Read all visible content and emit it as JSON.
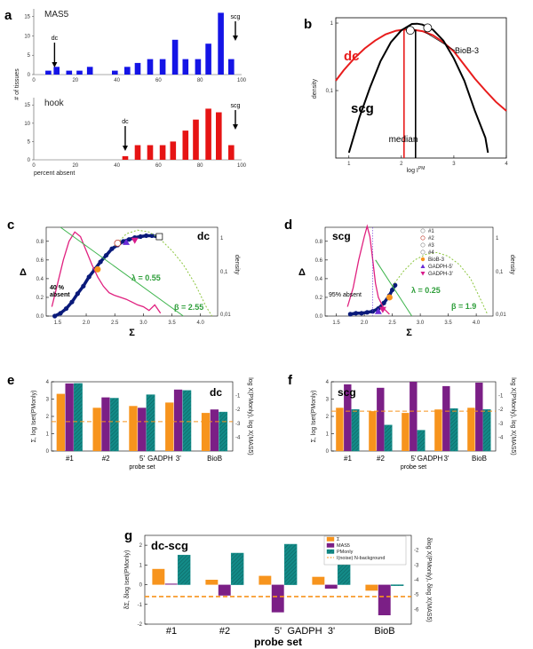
{
  "chart_data": [
    {
      "panel": "a",
      "type": "bar",
      "subplots": [
        {
          "title": "MAS5",
          "color": "#1414e6",
          "categories": [
            7,
            11,
            17,
            22,
            27,
            33,
            39,
            45,
            50,
            56,
            62,
            68,
            73,
            79,
            84,
            90,
            95
          ],
          "values": [
            1,
            2,
            1,
            1,
            2,
            0,
            1,
            2,
            3,
            4,
            4,
            9,
            4,
            4,
            8,
            16,
            4
          ],
          "annotations": [
            {
              "label": "dc",
              "x": 10
            },
            {
              "label": "scg",
              "x": 97
            }
          ],
          "ylim": [
            0,
            17
          ],
          "yticks": [
            "0",
            "5",
            "10",
            "15"
          ],
          "xticks": [
            "0",
            "20",
            "40",
            "60",
            "80",
            "100"
          ]
        },
        {
          "title": "hook",
          "color": "#e61414",
          "categories": [
            44,
            50,
            56,
            62,
            67,
            73,
            78,
            84,
            89,
            95
          ],
          "values": [
            1,
            4,
            4,
            4,
            5,
            8,
            11,
            14,
            13,
            4
          ],
          "annotations": [
            {
              "label": "dc",
              "x": 44
            },
            {
              "label": "scg",
              "x": 97
            }
          ],
          "ylim": [
            0,
            17
          ],
          "yticks": [
            "0",
            "5",
            "10",
            "15"
          ],
          "xticks": [
            "0",
            "20",
            "40",
            "60",
            "80",
            "100"
          ]
        }
      ],
      "ylabel": "# of tissues",
      "xlabel": "percent absent",
      "xlim": [
        0,
        100
      ]
    },
    {
      "panel": "b",
      "type": "line",
      "xlabel": "log I",
      "xlabel_sup": "PM",
      "ylabel": "density",
      "xlim": [
        0.75,
        4.0
      ],
      "xticks": [
        "1",
        "2",
        "3",
        "4"
      ],
      "yticks": [
        "1",
        "0,1"
      ],
      "series": [
        {
          "name": "dc",
          "color": "#e81c1c",
          "x": [
            0.75,
            0.9,
            1.1,
            1.3,
            1.5,
            1.7,
            1.9,
            2.05,
            2.2,
            2.4,
            2.6,
            2.8,
            3.0,
            3.2,
            3.4,
            3.6,
            3.8,
            4.0
          ],
          "y": [
            0.14,
            0.2,
            0.3,
            0.42,
            0.55,
            0.68,
            0.77,
            0.8,
            0.8,
            0.76,
            0.66,
            0.52,
            0.38,
            0.24,
            0.15,
            0.1,
            0.068,
            0.05
          ]
        },
        {
          "name": "scg",
          "color": "#000000",
          "x": [
            1.0,
            1.2,
            1.4,
            1.6,
            1.8,
            2.0,
            2.2,
            2.3,
            2.4,
            2.6,
            2.8,
            3.0,
            3.2,
            3.4,
            3.6,
            3.65
          ],
          "y": [
            0.012,
            0.04,
            0.11,
            0.27,
            0.52,
            0.78,
            0.97,
            0.98,
            0.95,
            0.8,
            0.55,
            0.3,
            0.14,
            0.05,
            0.02,
            0.012
          ]
        }
      ],
      "annotations": [
        "dc",
        "scg",
        "BioB-3",
        "median"
      ],
      "medians": [
        {
          "series": "dc",
          "x": 2.05
        },
        {
          "series": "scg",
          "x": 2.27
        }
      ],
      "markers": [
        {
          "series": "dc",
          "x": 2.17,
          "y": 0.78
        },
        {
          "series": "scg",
          "x": 2.5,
          "y": 0.85
        }
      ]
    },
    {
      "panel": "c",
      "type": "scatter",
      "title": "dc",
      "xlabel": "Σ",
      "ylabel": "Δ",
      "y2label": "density",
      "xlim": [
        1.3,
        4.3
      ],
      "ylim": [
        0,
        0.95
      ],
      "xticks": [
        "1.5",
        "2.0",
        "2.5",
        "3.0",
        "3.5",
        "4.0"
      ],
      "yticks": [
        "0.0",
        "0.2",
        "0.4",
        "0.6",
        "0.8"
      ],
      "y2ticks": [
        "1",
        "0,1",
        "0,01"
      ],
      "series": [
        {
          "name": "data",
          "color": "#0a1a7a",
          "x": [
            1.45,
            1.55,
            1.65,
            1.75,
            1.85,
            1.95,
            2.05,
            2.15,
            2.25,
            2.35,
            2.45,
            2.55,
            2.65,
            2.75,
            2.85,
            2.95,
            3.05,
            3.15,
            3.25
          ],
          "y": [
            0.0,
            0.03,
            0.08,
            0.15,
            0.24,
            0.32,
            0.42,
            0.5,
            0.58,
            0.65,
            0.72,
            0.76,
            0.8,
            0.82,
            0.84,
            0.85,
            0.86,
            0.86,
            0.85
          ]
        },
        {
          "name": "PM density",
          "color": "#e0207f",
          "x": [
            1.4,
            1.5,
            1.6,
            1.7,
            1.8,
            1.9,
            2.0,
            2.1,
            2.2,
            2.3,
            2.4,
            2.5,
            2.6,
            2.7,
            2.8,
            2.9,
            3.0,
            3.1,
            3.2,
            3.3
          ],
          "y": [
            0.1,
            0.35,
            0.6,
            0.8,
            0.9,
            0.85,
            0.7,
            0.55,
            0.42,
            0.32,
            0.25,
            0.22,
            0.2,
            0.18,
            0.15,
            0.12,
            0.1,
            0.06,
            0.12,
            0.03
          ]
        },
        {
          "name": "fit",
          "color": "#8cc63f",
          "dashed": true,
          "x": [
            2.5,
            2.7,
            2.9,
            3.1,
            3.3,
            3.5,
            3.7,
            3.9,
            4.1,
            4.2
          ],
          "y": [
            0.75,
            0.88,
            0.92,
            0.9,
            0.82,
            0.7,
            0.55,
            0.35,
            0.1,
            0.0
          ]
        },
        {
          "name": "lambda line",
          "color": "#3cb44b",
          "x": [
            1.55,
            3.7
          ],
          "y": [
            0.95,
            0.0
          ]
        }
      ],
      "probe_markers": [
        {
          "name": "#1",
          "x": 3.28,
          "y": 0.85,
          "shape": "square-open"
        },
        {
          "name": "#2",
          "x": 2.55,
          "y": 0.78,
          "shape": "circle-open"
        },
        {
          "name": "GADPH-5'",
          "x": 2.7,
          "y": 0.79,
          "shape": "triangle"
        },
        {
          "name": "GADPH-3'",
          "x": 2.85,
          "y": 0.81,
          "shape": "triangle-down"
        },
        {
          "name": "BioB-3",
          "x": 2.2,
          "y": 0.5,
          "shape": "circle"
        }
      ],
      "annotations": [
        "λ = 0.55",
        "β = 2.55",
        "40 % absent"
      ]
    },
    {
      "panel": "d",
      "type": "scatter",
      "title": "scg",
      "xlabel": "Σ",
      "ylabel": "Δ",
      "y2label": "density",
      "xlim": [
        1.3,
        4.3
      ],
      "ylim": [
        0,
        0.95
      ],
      "xticks": [
        "1.5",
        "2.0",
        "2.5",
        "3.0",
        "3.5",
        "4.0"
      ],
      "yticks": [
        "0.0",
        "0.2",
        "0.4",
        "0.6",
        "0.8"
      ],
      "y2ticks": [
        "1",
        "0,1",
        "0,01"
      ],
      "legend": [
        "#1",
        "#2",
        "#3",
        "#4",
        "BioB-3",
        "GADPH-5'",
        "GADPH-3'"
      ],
      "series": [
        {
          "name": "data",
          "color": "#0a1a7a",
          "x": [
            1.75,
            1.85,
            1.95,
            2.05,
            2.15,
            2.25,
            2.35,
            2.45,
            2.5,
            2.55
          ],
          "y": [
            0.02,
            0.03,
            0.03,
            0.04,
            0.05,
            0.08,
            0.14,
            0.22,
            0.28,
            0.33
          ]
        },
        {
          "name": "PM density",
          "color": "#e0207f",
          "x": [
            1.7,
            1.8,
            1.9,
            2.0,
            2.05,
            2.1,
            2.15,
            2.2,
            2.25,
            2.35,
            2.45
          ],
          "y": [
            0.1,
            0.3,
            0.6,
            0.85,
            0.96,
            0.85,
            0.6,
            0.35,
            0.2,
            0.08,
            0.02
          ]
        },
        {
          "name": "fit",
          "color": "#8cc63f",
          "dashed": true,
          "x": [
            2.5,
            2.7,
            2.9,
            3.1,
            3.3,
            3.5,
            3.7,
            3.9,
            4.1,
            4.2
          ],
          "y": [
            0.32,
            0.48,
            0.6,
            0.66,
            0.68,
            0.64,
            0.55,
            0.4,
            0.15,
            0.02
          ]
        },
        {
          "name": "lambda line",
          "color": "#3cb44b",
          "x": [
            2.2,
            2.85
          ],
          "y": [
            0.6,
            0.0
          ]
        }
      ],
      "probe_markers": [
        {
          "name": "GADPH-5'",
          "x": 2.25,
          "y": 0.05,
          "shape": "triangle"
        },
        {
          "name": "GADPH-3'",
          "x": 2.33,
          "y": 0.07,
          "shape": "triangle-down"
        },
        {
          "name": "BioB-3",
          "x": 2.45,
          "y": 0.2,
          "shape": "circle"
        }
      ],
      "annotations": [
        "λ = 0.25",
        "β = 1.9",
        "95% absent"
      ]
    },
    {
      "panel": "e",
      "type": "bar",
      "title": "dc",
      "xlabel": "probe set",
      "ylabel": "Σ, log Iset(PMonly)",
      "y2label": "log X(PMonly), log X(MAS5)",
      "categories": [
        "#1",
        "#2",
        "5'",
        "3'",
        "BioB"
      ],
      "category_caption": "GADPH",
      "series": [
        {
          "name": "Σ",
          "color": "#f7941d",
          "values": [
            3.3,
            2.5,
            2.6,
            2.8,
            2.2
          ]
        },
        {
          "name": "MAS5",
          "color": "#7b1f86",
          "values": [
            3.9,
            3.1,
            2.5,
            3.55,
            2.4
          ]
        },
        {
          "name": "PMonly",
          "color": "#138b88",
          "values": [
            3.9,
            3.05,
            3.25,
            3.5,
            2.25
          ]
        }
      ],
      "ylim": [
        0,
        4
      ],
      "yticks": [
        "0",
        "1",
        "2",
        "3",
        "4"
      ],
      "y2ticks": [
        "-1",
        "-2",
        "-3",
        "-4"
      ],
      "background_level": 1.7
    },
    {
      "panel": "f",
      "type": "bar",
      "title": "scg",
      "xlabel": "probe set",
      "ylabel": "Σ, log Iset(PMonly)",
      "y2label": "log X(PMonly), log X(MAS5)",
      "categories": [
        "#1",
        "#2",
        "5'",
        "3'",
        "BioB"
      ],
      "category_caption": "GADPH",
      "series": [
        {
          "name": "Σ",
          "color": "#f7941d",
          "values": [
            2.5,
            2.3,
            2.2,
            2.4,
            2.5
          ]
        },
        {
          "name": "MAS5",
          "color": "#7b1f86",
          "values": [
            3.85,
            3.65,
            4.0,
            3.75,
            3.95
          ]
        },
        {
          "name": "PMonly",
          "color": "#138b88",
          "values": [
            2.4,
            1.5,
            1.2,
            2.45,
            2.4
          ]
        }
      ],
      "ylim": [
        0,
        4
      ],
      "yticks": [
        "0",
        "1",
        "2",
        "3",
        "4"
      ],
      "y2ticks": [
        "-1",
        "-2",
        "-3",
        "-4"
      ],
      "background_level": 2.3
    },
    {
      "panel": "g",
      "type": "bar",
      "title": "dc-scg",
      "xlabel": "probe set",
      "ylabel": "δΣ, δlog Iset(PMonly)",
      "y2label": "δlog X(PMonly), δlog X(MAS5)",
      "categories": [
        "#1",
        "#2",
        "5'",
        "3'",
        "BioB"
      ],
      "category_caption": "GADPH",
      "legend": [
        "Σ",
        "MAS5",
        "PMonly",
        "I(noise) N-background"
      ],
      "series": [
        {
          "name": "Σ",
          "color": "#f7941d",
          "values": [
            0.8,
            0.25,
            0.45,
            0.4,
            -0.3
          ]
        },
        {
          "name": "MAS5",
          "color": "#7b1f86",
          "values": [
            0.05,
            -0.55,
            -1.4,
            -0.2,
            -1.55
          ]
        },
        {
          "name": "PMonly",
          "color": "#138b88",
          "values": [
            1.5,
            1.6,
            2.05,
            1.05,
            -0.05
          ]
        }
      ],
      "ylim": [
        -2,
        2.5
      ],
      "yticks": [
        "-2",
        "-1",
        "0",
        "1",
        "2"
      ],
      "y2ticks": [
        "-2",
        "-3",
        "-4",
        "-5",
        "-6"
      ],
      "background_level": -0.6
    }
  ]
}
